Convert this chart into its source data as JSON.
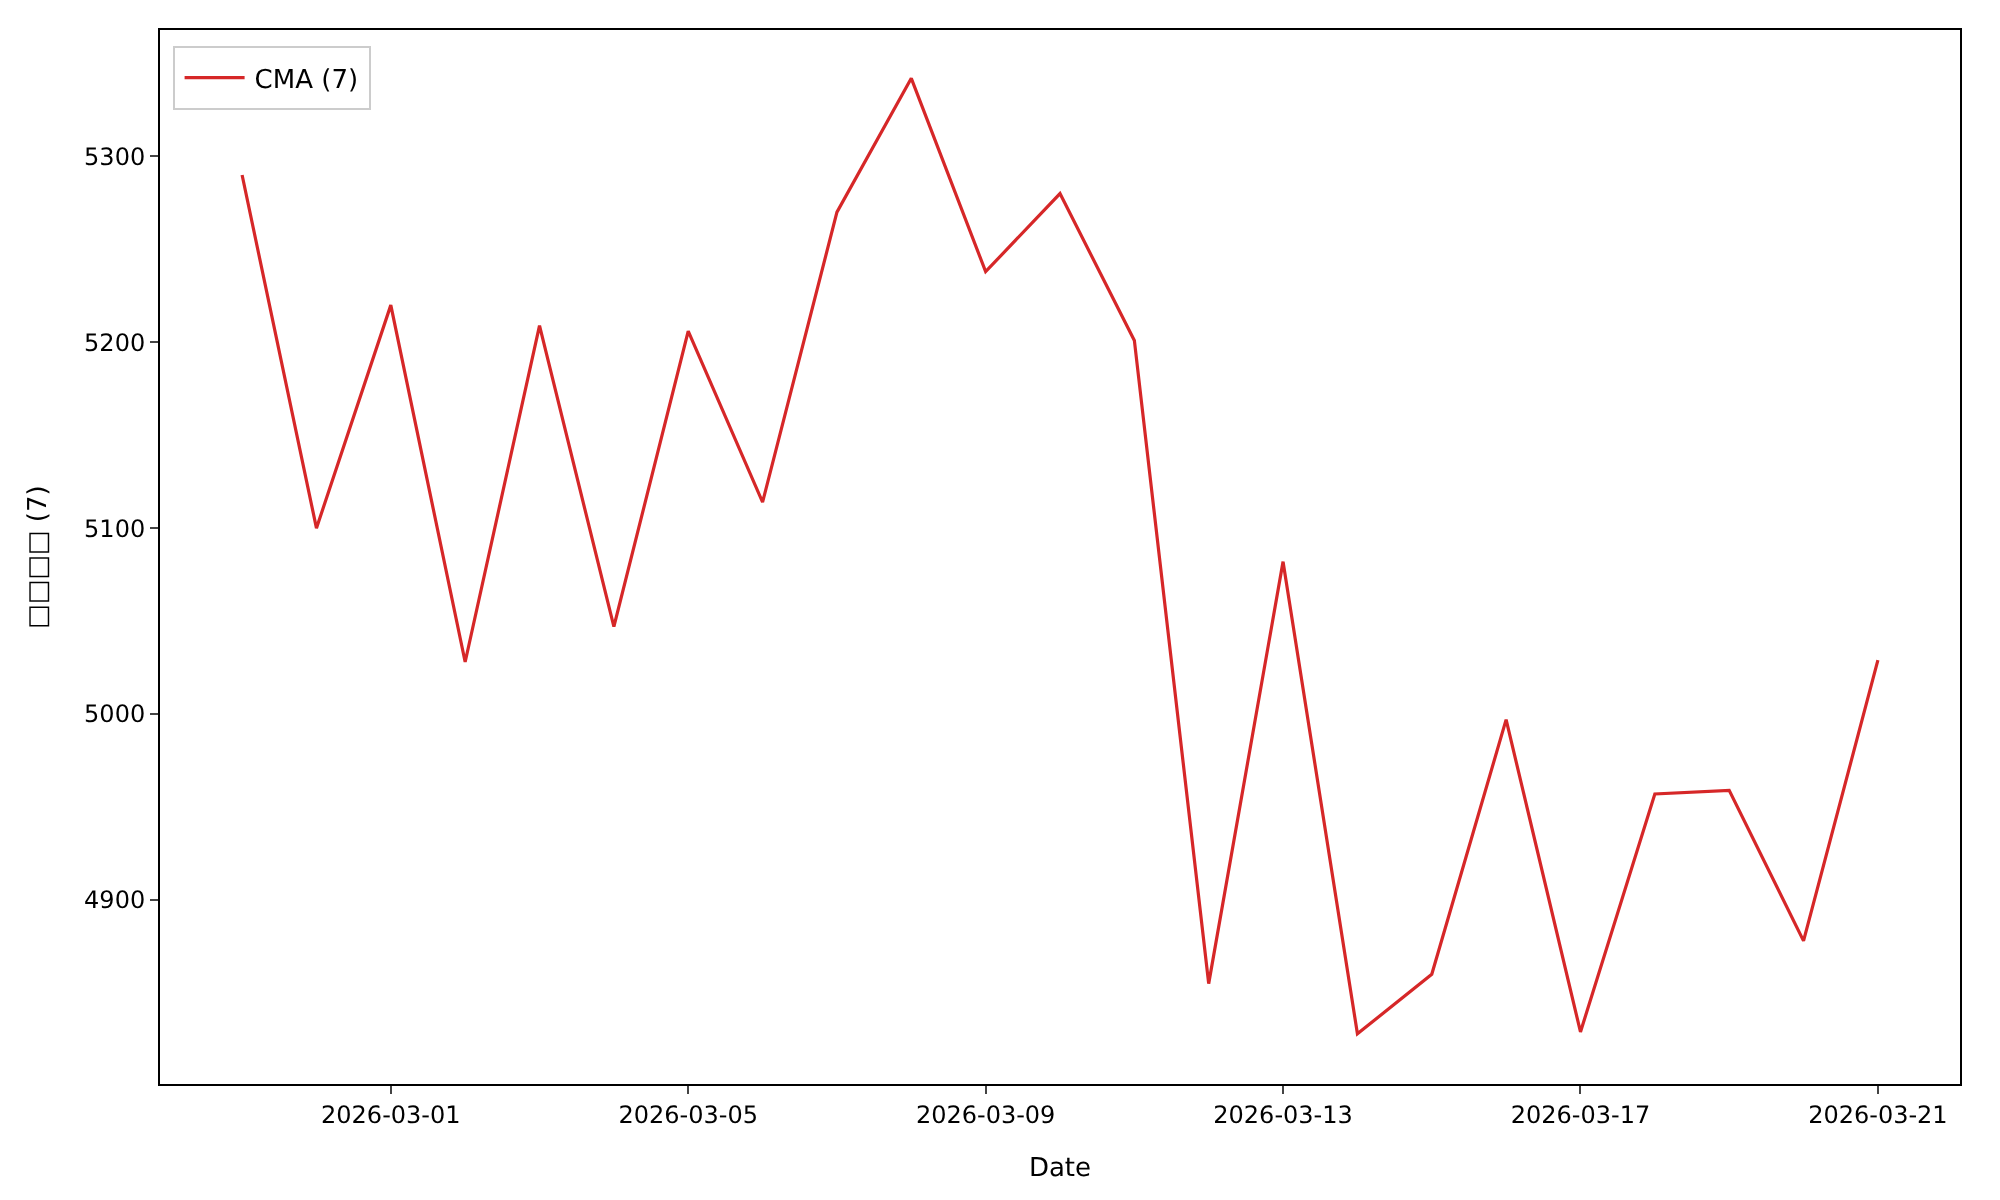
{
  "chart_data": {
    "type": "line",
    "xlabel": "Date",
    "ylabel": "□□□□ (7)",
    "x": [
      "2026-02-27",
      "2026-02-28",
      "2026-03-01",
      "2026-03-02",
      "2026-03-03",
      "2026-03-04",
      "2026-03-05",
      "2026-03-06",
      "2026-03-07",
      "2026-03-08",
      "2026-03-09",
      "2026-03-10",
      "2026-03-11",
      "2026-03-12",
      "2026-03-13",
      "2026-03-14",
      "2026-03-15",
      "2026-03-16",
      "2026-03-17",
      "2026-03-18",
      "2026-03-19",
      "2026-03-20",
      "2026-03-21"
    ],
    "series": [
      {
        "name": "CMA (7)",
        "color": "#d62728",
        "values": [
          5290,
          5100,
          5220,
          5028,
          5209,
          5047,
          5206,
          5114,
          5270,
          5342,
          5238,
          5280,
          5201,
          4855,
          5082,
          4828,
          4860,
          4997,
          4829,
          4957,
          4959,
          4878,
          5029
        ]
      }
    ],
    "xlim": [
      "2026-02-25T21:30",
      "2026-03-22T02:30"
    ],
    "xticks": [
      "2026-03-01",
      "2026-03-05",
      "2026-03-09",
      "2026-03-13",
      "2026-03-17",
      "2026-03-21"
    ],
    "ylim": [
      4801,
      5368
    ],
    "yticks": [
      4900,
      5000,
      5100,
      5200,
      5300
    ],
    "legend": "top left",
    "marker": "none",
    "line_style": "solid"
  }
}
